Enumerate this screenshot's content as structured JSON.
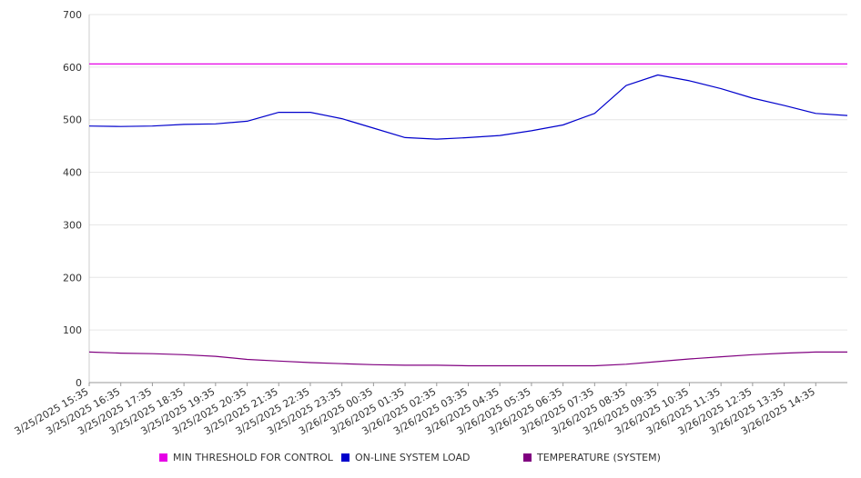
{
  "chart_data": {
    "type": "line",
    "title": "",
    "xlabel": "",
    "ylabel": "",
    "ylim": [
      0,
      700
    ],
    "y_ticks": [
      0,
      100,
      200,
      300,
      400,
      500,
      600,
      700
    ],
    "x_tick_labels": [
      "3/25/2025 15:35",
      "3/25/2025 16:35",
      "3/25/2025 17:35",
      "3/25/2025 18:35",
      "3/25/2025 19:35",
      "3/25/2025 20:35",
      "3/25/2025 21:35",
      "3/25/2025 22:35",
      "3/25/2025 23:35",
      "3/26/2025 00:35",
      "3/26/2025 01:35",
      "3/26/2025 02:35",
      "3/26/2025 03:35",
      "3/26/2025 04:35",
      "3/26/2025 05:35",
      "3/26/2025 06:35",
      "3/26/2025 07:35",
      "3/26/2025 08:35",
      "3/26/2025 09:35",
      "3/26/2025 10:35",
      "3/26/2025 11:35",
      "3/26/2025 12:35",
      "3/26/2025 13:35",
      "3/26/2025 14:35"
    ],
    "grid": "horizontal",
    "legend_position": "bottom",
    "series": [
      {
        "name": "MIN THRESHOLD FOR CONTROL",
        "color": "#e600e6",
        "values": [
          606,
          606,
          606,
          606,
          606,
          606,
          606,
          606,
          606,
          606,
          606,
          606,
          606,
          606,
          606,
          606,
          606,
          606,
          606,
          606,
          606,
          606,
          606,
          606,
          606
        ]
      },
      {
        "name": "ON-LINE SYSTEM LOAD",
        "color": "#0000cc",
        "values": [
          488,
          487,
          488,
          491,
          492,
          497,
          514,
          514,
          502,
          484,
          466,
          463,
          466,
          470,
          479,
          490,
          512,
          565,
          585,
          574,
          559,
          541,
          527,
          512,
          508
        ]
      },
      {
        "name": "TEMPERATURE (SYSTEM)",
        "color": "#800080",
        "values": [
          58,
          56,
          55,
          53,
          50,
          44,
          41,
          38,
          36,
          34,
          33,
          33,
          32,
          32,
          32,
          32,
          32,
          35,
          40,
          45,
          49,
          53,
          56,
          58,
          58
        ]
      }
    ]
  }
}
